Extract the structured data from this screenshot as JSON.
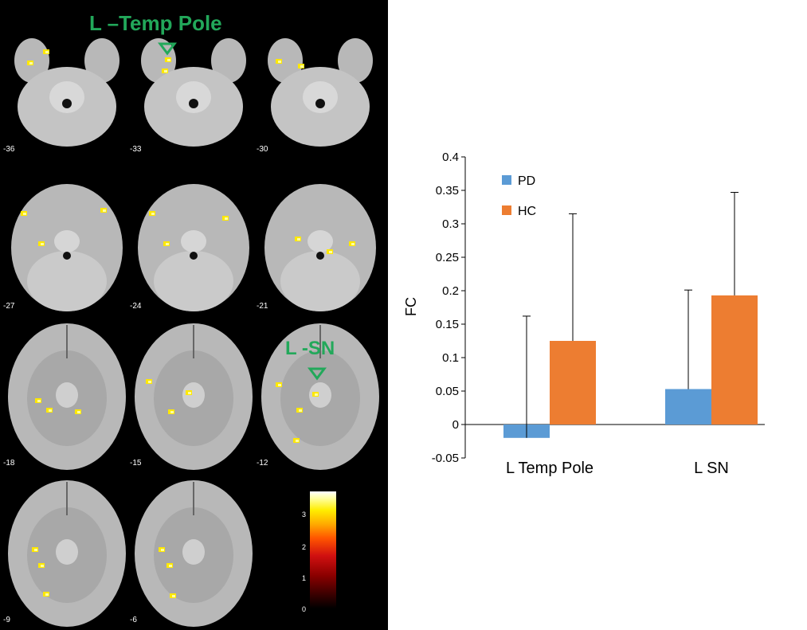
{
  "brain": {
    "slices": [
      {
        "z": "-36"
      },
      {
        "z": "-33"
      },
      {
        "z": "-30"
      },
      {
        "z": "-27"
      },
      {
        "z": "-24"
      },
      {
        "z": "-21"
      },
      {
        "z": "-18"
      },
      {
        "z": "-15"
      },
      {
        "z": "-12"
      },
      {
        "z": "-9"
      },
      {
        "z": "-6"
      }
    ],
    "annotations": {
      "temp_pole": "L –Temp Pole",
      "sn": "L -SN"
    },
    "annotation_color": "#22a85a",
    "colorbar": {
      "ticks": [
        "3",
        "2",
        "1",
        "0"
      ],
      "colormap": "hot"
    }
  },
  "chart_data": {
    "type": "bar",
    "categories": [
      "L Temp Pole",
      "L SN"
    ],
    "series": [
      {
        "name": "PD",
        "values": [
          -0.02,
          0.053
        ],
        "errors": [
          0.182,
          0.148
        ],
        "color": "#5b9bd5"
      },
      {
        "name": "HC",
        "values": [
          0.125,
          0.193
        ],
        "errors": [
          0.19,
          0.154
        ],
        "color": "#ed7d31"
      }
    ],
    "ylabel": "FC",
    "xlabel": "",
    "ylim": [
      -0.05,
      0.4
    ],
    "yticks": [
      "0.4",
      "0.35",
      "0.3",
      "0.25",
      "0.2",
      "0.15",
      "0.1",
      "0.05",
      "0",
      "-0.05"
    ],
    "grid": false,
    "legend_position": "top-left"
  }
}
